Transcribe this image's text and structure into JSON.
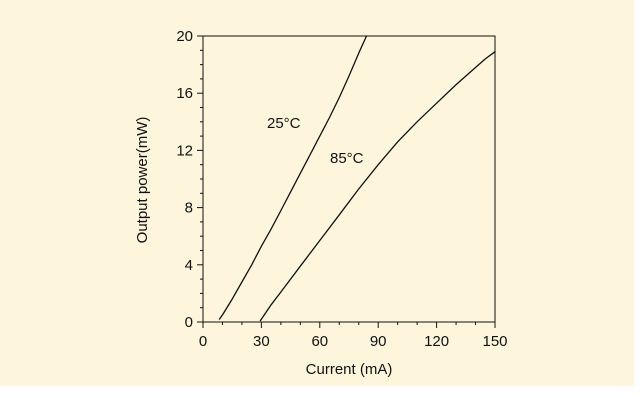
{
  "colors": {
    "background": "#fdf6dc",
    "ink": "#111111"
  },
  "chart_data": {
    "type": "line",
    "title": "",
    "xlabel": "Current (mA)",
    "ylabel": "Output power(mW)",
    "xlim": [
      0,
      150
    ],
    "ylim": [
      0,
      20
    ],
    "x_ticks": [
      0,
      30,
      60,
      90,
      120,
      150
    ],
    "y_ticks": [
      0,
      4,
      8,
      12,
      16,
      20
    ],
    "grid": false,
    "series": [
      {
        "name": "25°C",
        "x": [
          8.5,
          10,
          15,
          20,
          25,
          30,
          35,
          40,
          45,
          50,
          55,
          60,
          65,
          70,
          75,
          80,
          84
        ],
        "y": [
          0.2,
          0.5,
          1.6,
          2.8,
          4.0,
          5.3,
          6.5,
          7.8,
          9.1,
          10.4,
          11.7,
          13.0,
          14.3,
          15.7,
          17.2,
          18.8,
          20.0
        ]
      },
      {
        "name": "85°C",
        "x": [
          29.5,
          35,
          40,
          50,
          60,
          70,
          80,
          90,
          100,
          110,
          120,
          130,
          140,
          145,
          150
        ],
        "y": [
          0.1,
          1.2,
          2.1,
          3.9,
          5.7,
          7.5,
          9.3,
          11.0,
          12.6,
          14.0,
          15.3,
          16.6,
          17.8,
          18.4,
          18.9
        ]
      }
    ]
  }
}
